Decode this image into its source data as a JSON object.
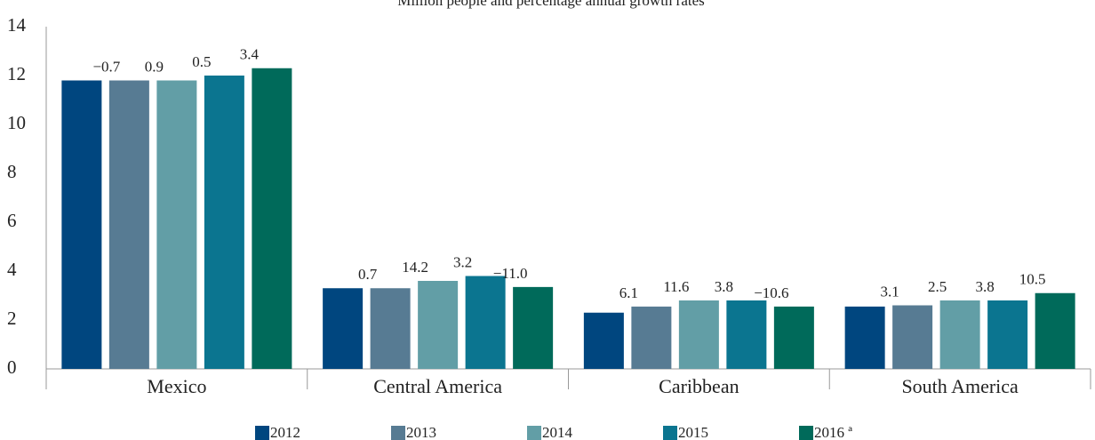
{
  "chart_data": {
    "type": "bar",
    "subtitle": "Million people and percentage annual growth rates",
    "categories": [
      "Mexico",
      "Central America",
      "Caribbean",
      "South America"
    ],
    "series": [
      {
        "name": "2012",
        "color": "#00467f",
        "values": [
          11.8,
          3.3,
          2.3,
          2.55
        ],
        "growth_labels": [
          null,
          null,
          null,
          null
        ]
      },
      {
        "name": "2013",
        "color": "#577b93",
        "values": [
          11.8,
          3.3,
          2.55,
          2.6
        ],
        "growth_labels": [
          "−0.7",
          "0.7",
          "6.1",
          "3.1"
        ]
      },
      {
        "name": "2014",
        "color": "#629ea6",
        "values": [
          11.8,
          3.6,
          2.8,
          2.8
        ],
        "growth_labels": [
          "0.9",
          "14.2",
          "11.6",
          "2.5"
        ]
      },
      {
        "name": "2015",
        "color": "#0b7590",
        "values": [
          12.0,
          3.8,
          2.8,
          2.8
        ],
        "growth_labels": [
          "0.5",
          "3.2",
          "3.8",
          "3.8"
        ]
      },
      {
        "name": "2016 ª",
        "color": "#006a5a",
        "values": [
          12.3,
          3.35,
          2.55,
          3.1
        ],
        "growth_labels": [
          "3.4",
          "−11.0",
          "−10.6",
          "10.5"
        ]
      }
    ],
    "ylim": [
      0,
      14
    ],
    "yticks": [
      0,
      2,
      4,
      6,
      8,
      10,
      12,
      14
    ],
    "legend": "bottom"
  }
}
